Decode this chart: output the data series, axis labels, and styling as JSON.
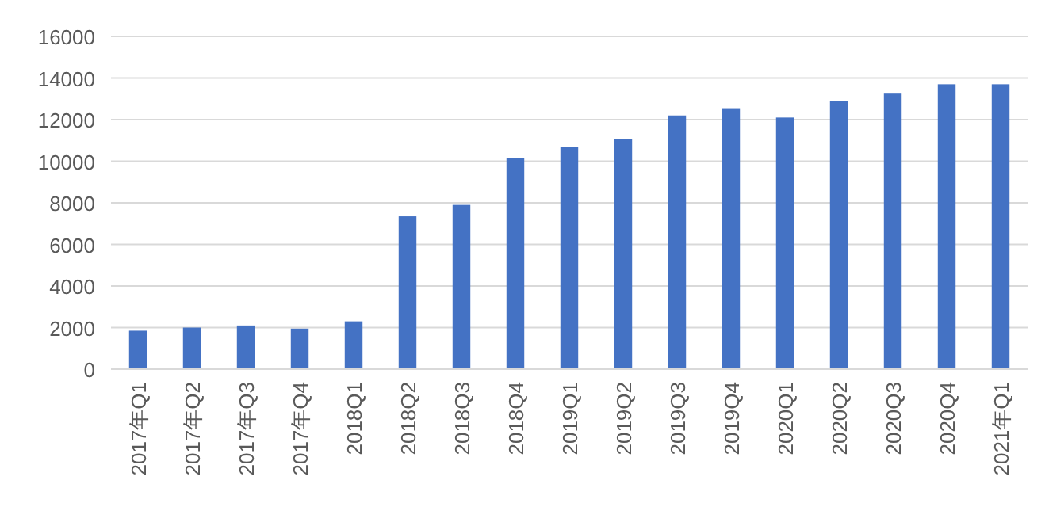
{
  "chart_data": {
    "type": "bar",
    "categories": [
      "2017年Q1",
      "2017年Q2",
      "2017年Q3",
      "2017年Q4",
      "2018Q1",
      "2018Q2",
      "2018Q3",
      "2018Q4",
      "2019Q1",
      "2019Q2",
      "2019Q3",
      "2019Q4",
      "2020Q1",
      "2020Q2",
      "2020Q3",
      "2020Q4",
      "2021年Q1"
    ],
    "values": [
      1850,
      2000,
      2100,
      1950,
      2300,
      7350,
      7900,
      10150,
      10700,
      11050,
      12200,
      12550,
      12100,
      12900,
      13250,
      13700,
      13700
    ],
    "color": "#4472c4",
    "ylim": [
      0,
      16000
    ],
    "yticks": [
      0,
      2000,
      4000,
      6000,
      8000,
      10000,
      12000,
      14000,
      16000
    ],
    "grid": "y"
  }
}
